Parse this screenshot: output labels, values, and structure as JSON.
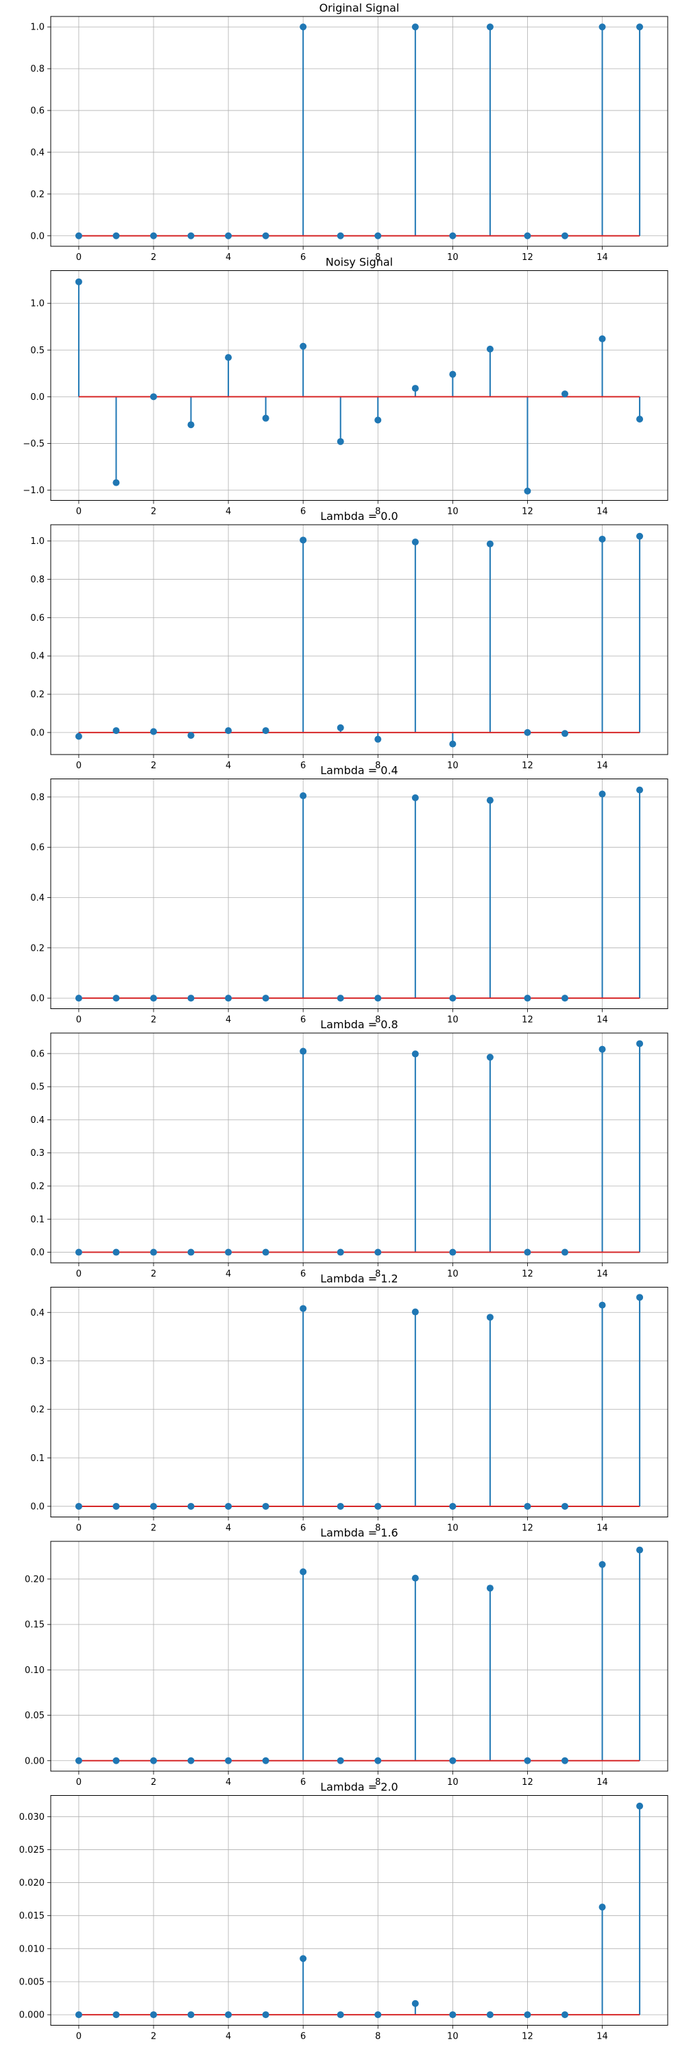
{
  "figure": {
    "background": "#ffffff"
  },
  "style": {
    "stem_color": "#1f77b4",
    "marker_color": "#1f77b4",
    "baseline_color": "#d62728",
    "grid_color": "#b0b0b0",
    "axes_color": "#000000"
  },
  "chart_data": [
    {
      "type": "stem",
      "title": "Original Signal",
      "xlabel": "",
      "ylabel": "",
      "grid": true,
      "xlim": [
        -0.75,
        15.75
      ],
      "ylim": [
        -0.05,
        1.05
      ],
      "xticks": [
        0,
        2,
        4,
        6,
        8,
        10,
        12,
        14
      ],
      "xtick_labels": [
        "0",
        "2",
        "4",
        "6",
        "8",
        "10",
        "12",
        "14"
      ],
      "yticks": [
        0.0,
        0.2,
        0.4,
        0.6,
        0.8,
        1.0
      ],
      "ytick_labels": [
        "0.0",
        "0.2",
        "0.4",
        "0.6",
        "0.8",
        "1.0"
      ],
      "baseline": 0,
      "x": [
        0,
        1,
        2,
        3,
        4,
        5,
        6,
        7,
        8,
        9,
        10,
        11,
        12,
        13,
        14,
        15
      ],
      "y": [
        0,
        0,
        0,
        0,
        0,
        0,
        1,
        0,
        0,
        1,
        0,
        1,
        0,
        0,
        1,
        1
      ]
    },
    {
      "type": "stem",
      "title": "Noisy Signal",
      "xlabel": "",
      "ylabel": "",
      "grid": true,
      "xlim": [
        -0.75,
        15.75
      ],
      "ylim": [
        -1.11,
        1.35
      ],
      "xticks": [
        0,
        2,
        4,
        6,
        8,
        10,
        12,
        14
      ],
      "xtick_labels": [
        "0",
        "2",
        "4",
        "6",
        "8",
        "10",
        "12",
        "14"
      ],
      "yticks": [
        -1.0,
        -0.5,
        0.0,
        0.5,
        1.0
      ],
      "ytick_labels": [
        "−1.0",
        "−0.5",
        "0.0",
        "0.5",
        "1.0"
      ],
      "baseline": 0,
      "x": [
        0,
        1,
        2,
        3,
        4,
        5,
        6,
        7,
        8,
        9,
        10,
        11,
        12,
        13,
        14,
        15
      ],
      "y": [
        1.23,
        -0.92,
        0.0,
        -0.3,
        0.42,
        -0.23,
        0.54,
        -0.48,
        -0.25,
        0.09,
        0.24,
        0.51,
        -1.01,
        0.03,
        0.62,
        -0.24
      ]
    },
    {
      "type": "stem",
      "title": "Lambda = 0.0",
      "xlabel": "",
      "ylabel": "",
      "grid": true,
      "xlim": [
        -0.75,
        15.75
      ],
      "ylim": [
        -0.115,
        1.085
      ],
      "xticks": [
        0,
        2,
        4,
        6,
        8,
        10,
        12,
        14
      ],
      "xtick_labels": [
        "0",
        "2",
        "4",
        "6",
        "8",
        "10",
        "12",
        "14"
      ],
      "yticks": [
        0.0,
        0.2,
        0.4,
        0.6,
        0.8,
        1.0
      ],
      "ytick_labels": [
        "0.0",
        "0.2",
        "0.4",
        "0.6",
        "0.8",
        "1.0"
      ],
      "baseline": 0,
      "x": [
        0,
        1,
        2,
        3,
        4,
        5,
        6,
        7,
        8,
        9,
        10,
        11,
        12,
        13,
        14,
        15
      ],
      "y": [
        -0.02,
        0.01,
        0.005,
        -0.015,
        0.01,
        0.01,
        1.005,
        0.025,
        -0.035,
        0.995,
        -0.06,
        0.985,
        0.0,
        -0.005,
        1.01,
        1.025
      ]
    },
    {
      "type": "stem",
      "title": "Lambda = 0.4",
      "xlabel": "",
      "ylabel": "",
      "grid": true,
      "xlim": [
        -0.75,
        15.75
      ],
      "ylim": [
        -0.042,
        0.872
      ],
      "xticks": [
        0,
        2,
        4,
        6,
        8,
        10,
        12,
        14
      ],
      "xtick_labels": [
        "0",
        "2",
        "4",
        "6",
        "8",
        "10",
        "12",
        "14"
      ],
      "yticks": [
        0.0,
        0.2,
        0.4,
        0.6,
        0.8
      ],
      "ytick_labels": [
        "0.0",
        "0.2",
        "0.4",
        "0.6",
        "0.8"
      ],
      "baseline": 0,
      "x": [
        0,
        1,
        2,
        3,
        4,
        5,
        6,
        7,
        8,
        9,
        10,
        11,
        12,
        13,
        14,
        15
      ],
      "y": [
        0,
        0,
        0,
        0,
        0,
        0,
        0.805,
        0,
        0,
        0.797,
        0,
        0.787,
        0,
        0,
        0.812,
        0.828
      ]
    },
    {
      "type": "stem",
      "title": "Lambda = 0.8",
      "xlabel": "",
      "ylabel": "",
      "grid": true,
      "xlim": [
        -0.75,
        15.75
      ],
      "ylim": [
        -0.032,
        0.662
      ],
      "xticks": [
        0,
        2,
        4,
        6,
        8,
        10,
        12,
        14
      ],
      "xtick_labels": [
        "0",
        "2",
        "4",
        "6",
        "8",
        "10",
        "12",
        "14"
      ],
      "yticks": [
        0.0,
        0.1,
        0.2,
        0.3,
        0.4,
        0.5,
        0.6
      ],
      "ytick_labels": [
        "0.0",
        "0.1",
        "0.2",
        "0.3",
        "0.4",
        "0.5",
        "0.6"
      ],
      "baseline": 0,
      "x": [
        0,
        1,
        2,
        3,
        4,
        5,
        6,
        7,
        8,
        9,
        10,
        11,
        12,
        13,
        14,
        15
      ],
      "y": [
        0,
        0,
        0,
        0,
        0,
        0,
        0.607,
        0,
        0,
        0.599,
        0,
        0.589,
        0,
        0,
        0.613,
        0.63
      ]
    },
    {
      "type": "stem",
      "title": "Lambda = 1.2",
      "xlabel": "",
      "ylabel": "",
      "grid": true,
      "xlim": [
        -0.75,
        15.75
      ],
      "ylim": [
        -0.022,
        0.452
      ],
      "xticks": [
        0,
        2,
        4,
        6,
        8,
        10,
        12,
        14
      ],
      "xtick_labels": [
        "0",
        "2",
        "4",
        "6",
        "8",
        "10",
        "12",
        "14"
      ],
      "yticks": [
        0.0,
        0.1,
        0.2,
        0.3,
        0.4
      ],
      "ytick_labels": [
        "0.0",
        "0.1",
        "0.2",
        "0.3",
        "0.4"
      ],
      "baseline": 0,
      "x": [
        0,
        1,
        2,
        3,
        4,
        5,
        6,
        7,
        8,
        9,
        10,
        11,
        12,
        13,
        14,
        15
      ],
      "y": [
        0,
        0,
        0,
        0,
        0,
        0,
        0.408,
        0,
        0,
        0.401,
        0,
        0.39,
        0,
        0,
        0.415,
        0.431
      ]
    },
    {
      "type": "stem",
      "title": "Lambda = 1.6",
      "xlabel": "",
      "ylabel": "",
      "grid": true,
      "xlim": [
        -0.75,
        15.75
      ],
      "ylim": [
        -0.0115,
        0.2415
      ],
      "xticks": [
        0,
        2,
        4,
        6,
        8,
        10,
        12,
        14
      ],
      "xtick_labels": [
        "0",
        "2",
        "4",
        "6",
        "8",
        "10",
        "12",
        "14"
      ],
      "yticks": [
        0.0,
        0.05,
        0.1,
        0.15,
        0.2
      ],
      "ytick_labels": [
        "0.00",
        "0.05",
        "0.10",
        "0.15",
        "0.20"
      ],
      "baseline": 0,
      "x": [
        0,
        1,
        2,
        3,
        4,
        5,
        6,
        7,
        8,
        9,
        10,
        11,
        12,
        13,
        14,
        15
      ],
      "y": [
        0,
        0,
        0,
        0,
        0,
        0,
        0.208,
        0,
        0,
        0.201,
        0,
        0.19,
        0,
        0,
        0.216,
        0.232
      ]
    },
    {
      "type": "stem",
      "title": "Lambda = 2.0",
      "xlabel": "",
      "ylabel": "",
      "grid": true,
      "xlim": [
        -0.75,
        15.75
      ],
      "ylim": [
        -0.0016,
        0.0332
      ],
      "xticks": [
        0,
        2,
        4,
        6,
        8,
        10,
        12,
        14
      ],
      "xtick_labels": [
        "0",
        "2",
        "4",
        "6",
        "8",
        "10",
        "12",
        "14"
      ],
      "yticks": [
        0.0,
        0.005,
        0.01,
        0.015,
        0.02,
        0.025,
        0.03
      ],
      "ytick_labels": [
        "0.000",
        "0.005",
        "0.010",
        "0.015",
        "0.020",
        "0.025",
        "0.030"
      ],
      "baseline": 0,
      "x": [
        0,
        1,
        2,
        3,
        4,
        5,
        6,
        7,
        8,
        9,
        10,
        11,
        12,
        13,
        14,
        15
      ],
      "y": [
        0,
        0,
        0,
        0,
        0,
        0,
        0.0085,
        0,
        0,
        0.0017,
        0,
        0,
        0,
        0,
        0.0163,
        0.0316
      ]
    }
  ]
}
